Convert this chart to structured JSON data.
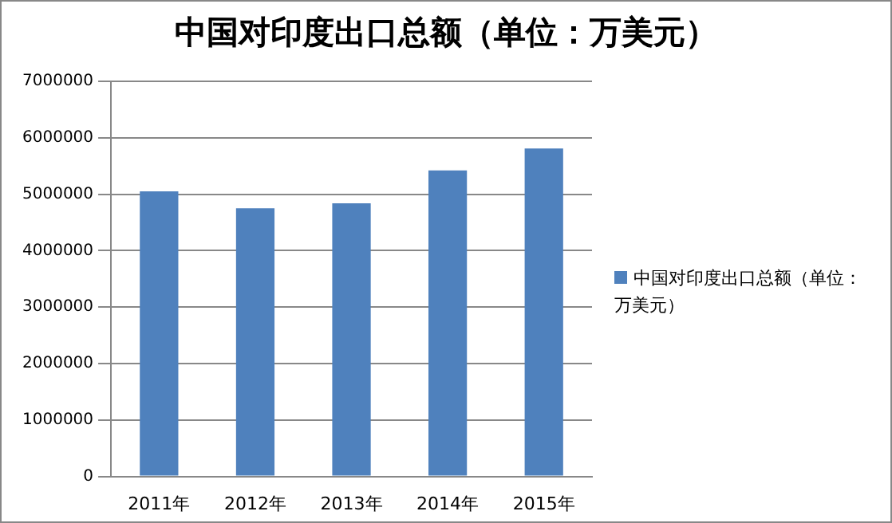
{
  "chart_data": {
    "type": "bar",
    "title": "中国对印度出口总额（单位：万美元）",
    "categories": [
      "2011年",
      "2012年",
      "2013年",
      "2014年",
      "2015年"
    ],
    "series": [
      {
        "name": "中国对印度出口总额（单位：万美元）",
        "color": "#4f81bd",
        "values": [
          5050000,
          4750000,
          4840000,
          5420000,
          5810000
        ]
      }
    ],
    "ylim": [
      0,
      7000000
    ],
    "yticks": [
      0,
      1000000,
      2000000,
      3000000,
      4000000,
      5000000,
      6000000,
      7000000
    ],
    "grid": "y",
    "legend": "right"
  }
}
